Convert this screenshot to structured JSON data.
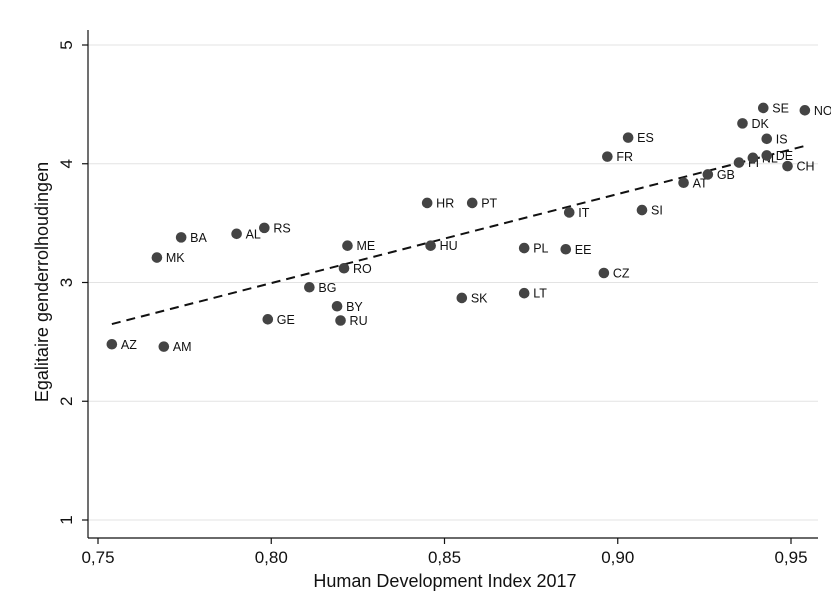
{
  "chart_data": {
    "type": "scatter",
    "title": "",
    "xlabel": "Human Development Index 2017",
    "ylabel": "Egalitaire genderrolhoudingen",
    "xlim": [
      0.745,
      0.958
    ],
    "ylim": [
      0.9,
      5.2
    ],
    "xticks": [
      {
        "value": 0.75,
        "label": "0,75"
      },
      {
        "value": 0.8,
        "label": "0,80"
      },
      {
        "value": 0.85,
        "label": "0,85"
      },
      {
        "value": 0.9,
        "label": "0,90"
      },
      {
        "value": 0.95,
        "label": "0,95"
      }
    ],
    "yticks": [
      {
        "value": 1,
        "label": "1"
      },
      {
        "value": 2,
        "label": "2"
      },
      {
        "value": 3,
        "label": "3"
      },
      {
        "value": 4,
        "label": "4"
      },
      {
        "value": 5,
        "label": "5"
      }
    ],
    "grid": "horizontal",
    "marker_color": "#444444",
    "fit_line": {
      "style": "dashed",
      "x": [
        0.754,
        0.954
      ],
      "y": [
        2.65,
        4.15
      ]
    },
    "points": [
      {
        "label": "AZ",
        "x": 0.754,
        "y": 2.48
      },
      {
        "label": "AM",
        "x": 0.769,
        "y": 2.46
      },
      {
        "label": "MK",
        "x": 0.767,
        "y": 3.21
      },
      {
        "label": "BA",
        "x": 0.774,
        "y": 3.38
      },
      {
        "label": "AL",
        "x": 0.79,
        "y": 3.41
      },
      {
        "label": "RS",
        "x": 0.798,
        "y": 3.46
      },
      {
        "label": "GE",
        "x": 0.799,
        "y": 2.69
      },
      {
        "label": "BG",
        "x": 0.811,
        "y": 2.96
      },
      {
        "label": "BY",
        "x": 0.819,
        "y": 2.8
      },
      {
        "label": "RU",
        "x": 0.82,
        "y": 2.68
      },
      {
        "label": "RO",
        "x": 0.821,
        "y": 3.12
      },
      {
        "label": "ME",
        "x": 0.822,
        "y": 3.31
      },
      {
        "label": "HR",
        "x": 0.845,
        "y": 3.67
      },
      {
        "label": "HU",
        "x": 0.846,
        "y": 3.31
      },
      {
        "label": "SK",
        "x": 0.855,
        "y": 2.87
      },
      {
        "label": "PT",
        "x": 0.858,
        "y": 3.67
      },
      {
        "label": "PL",
        "x": 0.873,
        "y": 3.29
      },
      {
        "label": "LT",
        "x": 0.873,
        "y": 2.91
      },
      {
        "label": "EE",
        "x": 0.885,
        "y": 3.28
      },
      {
        "label": "IT",
        "x": 0.886,
        "y": 3.59
      },
      {
        "label": "CZ",
        "x": 0.896,
        "y": 3.08
      },
      {
        "label": "FR",
        "x": 0.897,
        "y": 4.06
      },
      {
        "label": "ES",
        "x": 0.903,
        "y": 4.22
      },
      {
        "label": "SI",
        "x": 0.907,
        "y": 3.61
      },
      {
        "label": "AT",
        "x": 0.919,
        "y": 3.84
      },
      {
        "label": "GB",
        "x": 0.926,
        "y": 3.91
      },
      {
        "label": "FI",
        "x": 0.935,
        "y": 4.01
      },
      {
        "label": "NL",
        "x": 0.939,
        "y": 4.05
      },
      {
        "label": "DK",
        "x": 0.936,
        "y": 4.34
      },
      {
        "label": "SE",
        "x": 0.942,
        "y": 4.47
      },
      {
        "label": "IS",
        "x": 0.943,
        "y": 4.21
      },
      {
        "label": "DE",
        "x": 0.943,
        "y": 4.07
      },
      {
        "label": "CH",
        "x": 0.949,
        "y": 3.98
      },
      {
        "label": "NO",
        "x": 0.954,
        "y": 4.45
      }
    ]
  }
}
